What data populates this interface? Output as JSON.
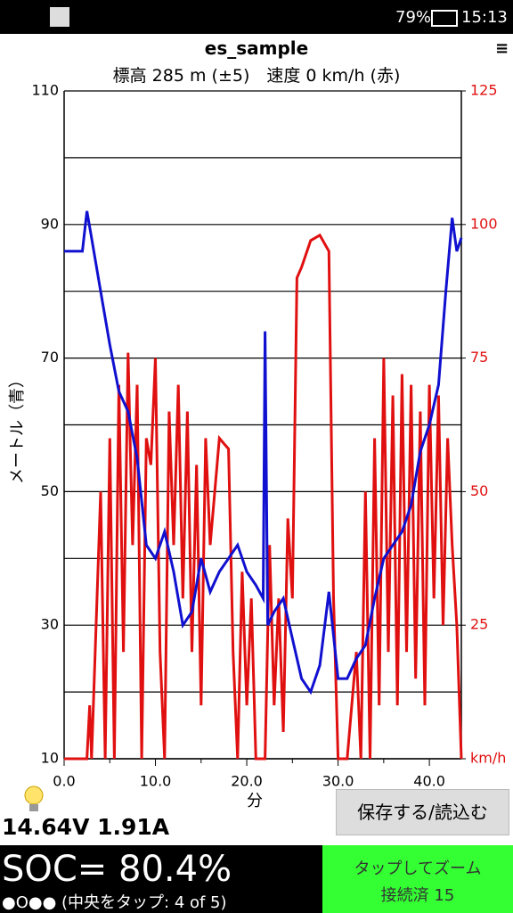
{
  "status": {
    "battery": "79%",
    "time": "15:13"
  },
  "chart_data": {
    "type": "line",
    "title": "es_sample",
    "subtitle": "標高 285 m (±5)　速度 0 km/h (赤)",
    "ylabel": "メートル（青）",
    "xlabel": "分",
    "xlim": [
      0,
      43.5
    ],
    "xticks": [
      {
        "value": 0,
        "label": "0.0"
      },
      {
        "value": 10,
        "label": "10.0"
      },
      {
        "value": 20,
        "label": "20.0"
      },
      {
        "value": 30,
        "label": "30.0"
      },
      {
        "value": 40,
        "label": "40.0"
      }
    ],
    "minor_xticks": [
      5,
      15,
      25,
      35
    ],
    "ylim": [
      10,
      110
    ],
    "yticks": [
      10,
      30,
      50,
      70,
      90,
      110
    ],
    "minor_yticks": [
      20,
      40,
      60,
      80,
      100
    ],
    "y2lim": [
      0,
      125
    ],
    "y2ticks": [
      {
        "value": 0,
        "label": "km/h"
      },
      25,
      50,
      75,
      100,
      125
    ],
    "y2color": "#e01010",
    "grid": true,
    "series": [
      {
        "name": "メートル",
        "color": "#1010d0",
        "x": [
          0,
          2,
          2.5,
          3,
          4,
          5,
          6,
          7,
          8,
          9,
          10,
          11,
          12,
          13,
          14,
          15,
          16,
          17,
          18,
          19,
          20,
          21,
          21.8,
          22,
          22.3,
          23,
          24,
          25,
          26,
          27,
          28,
          29,
          30,
          31,
          32,
          33,
          34,
          35,
          36,
          37,
          38,
          39,
          40,
          41,
          41.8,
          42.5,
          43,
          43.5
        ],
        "values": [
          86,
          86,
          92,
          88,
          80,
          72,
          65,
          62,
          55,
          42,
          40,
          44,
          38,
          30,
          32,
          40,
          35,
          38,
          40,
          42,
          38,
          36,
          34,
          74,
          30,
          32,
          34,
          28,
          22,
          20,
          24,
          35,
          22,
          22,
          25,
          27,
          34,
          40,
          42,
          44,
          48,
          56,
          60,
          66,
          80,
          91,
          86,
          88
        ]
      },
      {
        "name": "km/h",
        "color": "#e01010",
        "axis": "y2",
        "x": [
          0,
          2.5,
          2.8,
          3,
          3.5,
          4,
          4.5,
          5,
          5.5,
          6,
          6.5,
          7,
          7.5,
          8,
          8.5,
          9,
          9.5,
          10,
          10.5,
          11,
          11.5,
          12,
          12.5,
          13,
          13.5,
          14,
          14.5,
          15,
          15.5,
          16,
          17,
          18,
          18.5,
          19,
          19.5,
          20,
          20.5,
          21,
          22,
          22.5,
          23,
          23.5,
          24,
          24.5,
          25,
          25.5,
          26,
          27,
          28,
          29,
          29.5,
          30,
          31,
          32,
          32.5,
          33,
          33.5,
          34,
          34.5,
          35,
          35.5,
          36,
          36.5,
          37,
          37.5,
          38,
          38.5,
          39,
          39.5,
          40,
          40.5,
          41,
          41.5,
          42,
          42.5,
          43,
          43.5
        ],
        "values": [
          0,
          0,
          10,
          0,
          25,
          50,
          0,
          60,
          0,
          70,
          20,
          76,
          40,
          70,
          0,
          60,
          55,
          75,
          20,
          0,
          65,
          40,
          70,
          30,
          65,
          20,
          55,
          10,
          60,
          40,
          60,
          58,
          20,
          0,
          35,
          10,
          30,
          0,
          0,
          40,
          10,
          30,
          5,
          45,
          30,
          90,
          92,
          97,
          98,
          95,
          30,
          0,
          0,
          20,
          0,
          50,
          0,
          60,
          10,
          75,
          20,
          68,
          10,
          72,
          20,
          70,
          15,
          65,
          10,
          70,
          30,
          68,
          25,
          60,
          40,
          25,
          0
        ]
      }
    ]
  },
  "footer": {
    "power": "14.64V 1.91A",
    "button": "保存する/読込む",
    "soc": "SOC= 80.4%",
    "mode": "●O●● (中央をタップ: 4 of 5)",
    "zoom": "タップしてズーム",
    "connection": "接続済 15"
  }
}
